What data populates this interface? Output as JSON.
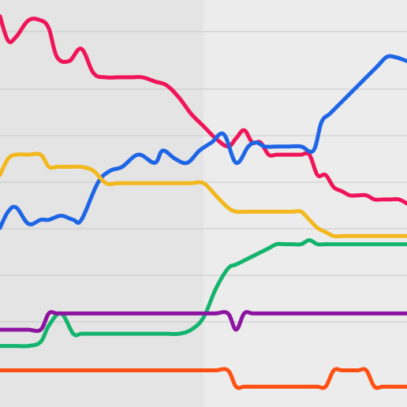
{
  "chart_data": {
    "type": "line",
    "title": "",
    "xlabel": "",
    "ylabel": "",
    "xlim": [
      0,
      100
    ],
    "ylim": [
      0,
      100
    ],
    "grid": true,
    "legend": "none",
    "background": "#ececec",
    "shaded_band_color": "#e4e4e4",
    "gridline_color": "#c8c8c8",
    "series": [
      {
        "color": "#f0145a",
        "x": [
          0,
          2,
          4,
          7,
          10,
          12,
          14,
          17,
          20,
          23,
          26,
          29,
          32,
          35,
          38,
          41,
          44,
          47,
          50,
          53,
          56,
          58,
          60,
          62,
          64,
          66,
          68,
          70,
          72,
          74,
          76,
          78,
          80,
          82,
          84,
          86,
          88,
          90,
          92,
          94,
          96,
          98,
          100
        ],
        "y": [
          96,
          90,
          91,
          95,
          95,
          93,
          86,
          85,
          88,
          82,
          81,
          81,
          81,
          81,
          80,
          79,
          76,
          72,
          69,
          66,
          64,
          66,
          68,
          65,
          65,
          62,
          62,
          62,
          62,
          62,
          62,
          57,
          57,
          54,
          53,
          52,
          52,
          52,
          51,
          51,
          51,
          51,
          50
        ]
      },
      {
        "color": "#1e66e6",
        "x": [
          0,
          2,
          4,
          7,
          10,
          12,
          15,
          18,
          20,
          24,
          27,
          30,
          34,
          38,
          40,
          43,
          46,
          49,
          52,
          55,
          58,
          61,
          63,
          65,
          68,
          71,
          74,
          77,
          79,
          81,
          83,
          85,
          87,
          89,
          91,
          93,
          95,
          97,
          100
        ],
        "y": [
          44,
          48,
          49,
          45,
          46,
          46,
          47,
          46,
          46,
          55,
          58,
          59,
          62,
          60,
          63,
          61,
          60,
          63,
          65,
          67,
          60,
          64,
          65,
          64,
          64,
          64,
          64,
          63,
          70,
          72,
          74,
          76,
          78,
          80,
          82,
          84,
          86,
          86,
          85
        ]
      },
      {
        "color": "#f2b81e",
        "x": [
          0,
          2,
          4,
          7,
          10,
          12,
          14,
          17,
          20,
          23,
          26,
          29,
          32,
          35,
          38,
          41,
          44,
          47,
          50,
          53,
          56,
          58,
          60,
          62,
          64,
          66,
          68,
          70,
          72,
          74,
          76,
          78,
          80,
          82,
          84,
          86,
          88,
          90,
          92,
          94,
          96,
          98,
          100
        ],
        "y": [
          57,
          61,
          62,
          62,
          62,
          59,
          59,
          59,
          59,
          58,
          55,
          55,
          55,
          55,
          55,
          55,
          55,
          55,
          55,
          52,
          49,
          48,
          48,
          48,
          48,
          48,
          48,
          48,
          48,
          48,
          46,
          44,
          43,
          42,
          42,
          42,
          42,
          42,
          42,
          42,
          42,
          42,
          42
        ]
      },
      {
        "color": "#14b46e",
        "x": [
          0,
          2,
          4,
          7,
          10,
          12,
          15,
          18,
          20,
          23,
          26,
          29,
          32,
          35,
          38,
          41,
          44,
          47,
          50,
          53,
          56,
          58,
          60,
          62,
          64,
          66,
          68,
          70,
          72,
          74,
          76,
          78,
          80,
          82,
          84,
          86,
          88,
          90,
          92,
          94,
          96,
          98,
          100
        ],
        "y": [
          15,
          15,
          15,
          15,
          16,
          20,
          23,
          18,
          18,
          18,
          18,
          18,
          18,
          18,
          18,
          18,
          18,
          19,
          22,
          29,
          34,
          35,
          36,
          37,
          38,
          39,
          40,
          40,
          40,
          40,
          41,
          40,
          40,
          40,
          40,
          40,
          40,
          40,
          40,
          40,
          40,
          40,
          40
        ]
      },
      {
        "color": "#8c14a0",
        "x": [
          0,
          2,
          4,
          7,
          10,
          12,
          14,
          17,
          20,
          23,
          26,
          29,
          32,
          35,
          38,
          41,
          44,
          47,
          50,
          53,
          56,
          58,
          60,
          62,
          64,
          66,
          68,
          70,
          72,
          74,
          76,
          78,
          80,
          82,
          84,
          86,
          88,
          90,
          92,
          94,
          96,
          98,
          100
        ],
        "y": [
          19,
          19,
          19,
          19,
          19,
          23,
          23,
          23,
          23,
          23,
          23,
          23,
          23,
          23,
          23,
          23,
          23,
          23,
          23,
          23,
          23,
          19,
          23,
          23,
          23,
          23,
          23,
          23,
          23,
          23,
          23,
          23,
          23,
          23,
          23,
          23,
          23,
          23,
          23,
          23,
          23,
          23,
          23
        ]
      },
      {
        "color": "#ff5014",
        "x": [
          0,
          2,
          4,
          7,
          10,
          12,
          14,
          17,
          20,
          23,
          26,
          29,
          32,
          35,
          38,
          41,
          44,
          47,
          50,
          53,
          56,
          58,
          60,
          62,
          64,
          66,
          68,
          70,
          72,
          74,
          76,
          78,
          80,
          82,
          84,
          86,
          88,
          90,
          92,
          94,
          96,
          98,
          100
        ],
        "y": [
          9,
          9,
          9,
          9,
          9,
          9,
          9,
          9,
          9,
          9,
          9,
          9,
          9,
          9,
          9,
          9,
          9,
          9,
          9,
          9,
          9,
          5,
          5,
          5,
          5,
          5,
          5,
          5,
          5,
          5,
          5,
          5,
          5,
          9,
          9,
          9,
          9,
          9,
          5,
          5,
          5,
          5,
          5
        ]
      }
    ]
  }
}
